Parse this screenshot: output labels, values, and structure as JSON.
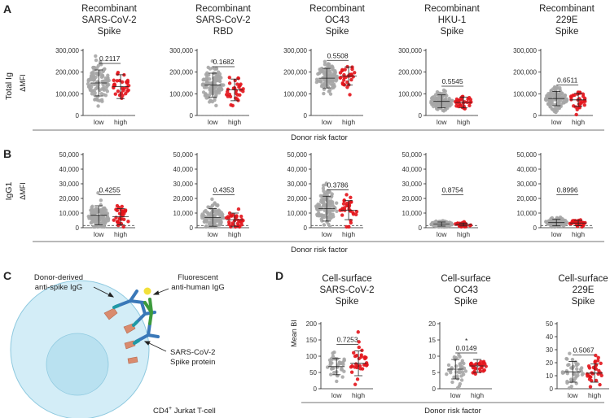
{
  "panel_labels": {
    "A": "A",
    "B": "B",
    "C": "C",
    "D": "D"
  },
  "row_labels": {
    "total_ig": "Total Ig",
    "igg1": "IgG1",
    "dmfi": "ΔMFI",
    "mean_bi": "Mean BI"
  },
  "footer_labels": {
    "row_a": "Donor risk factor",
    "row_b": "Donor risk factor",
    "row_d": "Donor risk factor"
  },
  "colors": {
    "low": "#a6a6a6",
    "high": "#e3141b"
  },
  "diagram": {
    "donor_label_1": "Donor-derived",
    "donor_label_2": "anti-spike IgG",
    "fluor_label_1": "Fluorescent",
    "fluor_label_2": "anti-human IgG",
    "spike_label_1": "SARS-CoV-2",
    "spike_label_2": "Spike protein",
    "cell_label_main": "CD4",
    "cell_label_sup": "+",
    "cell_label_rest": " Jurkat T-cell"
  },
  "chart_data": [
    {
      "id": "A1",
      "type": "scatter",
      "title": [
        "Recombinant",
        "SARS-CoV-2",
        "Spike"
      ],
      "ylabel": "ΔMFI",
      "ylim": [
        0,
        300000
      ],
      "yticks": [
        0,
        100000,
        200000,
        300000
      ],
      "ytick_labels": [
        "0",
        "100,000",
        "200,000",
        "300,000"
      ],
      "categories": [
        "low",
        "high"
      ],
      "p_value": "0.2117",
      "star": "",
      "baseline": 0,
      "series": [
        {
          "name": "low",
          "mean": 150000,
          "sd": 60000,
          "n": 110,
          "spread": 80000
        },
        {
          "name": "high",
          "mean": 133000,
          "sd": 55000,
          "n": 30,
          "spread": 70000
        }
      ]
    },
    {
      "id": "A2",
      "type": "scatter",
      "title": [
        "Recombinant",
        "SARS-CoV-2",
        "RBD"
      ],
      "ylabel": "ΔMFI",
      "ylim": [
        0,
        300000
      ],
      "yticks": [
        0,
        100000,
        200000,
        300000
      ],
      "ytick_labels": [
        "0",
        "100,000",
        "200,000",
        "300,000"
      ],
      "categories": [
        "low",
        "high"
      ],
      "p_value": "0.1682",
      "star": "",
      "baseline": 0,
      "series": [
        {
          "name": "low",
          "mean": 140000,
          "sd": 55000,
          "n": 110,
          "spread": 75000
        },
        {
          "name": "high",
          "mean": 118000,
          "sd": 50000,
          "n": 30,
          "spread": 70000
        }
      ]
    },
    {
      "id": "A3",
      "type": "scatter",
      "title": [
        "Recombinant",
        "OC43",
        "Spike"
      ],
      "ylabel": "ΔMFI",
      "ylim": [
        0,
        300000
      ],
      "yticks": [
        0,
        100000,
        200000,
        300000
      ],
      "ytick_labels": [
        "0",
        "100,000",
        "200,000",
        "300,000"
      ],
      "categories": [
        "low",
        "high"
      ],
      "p_value": "0.5508",
      "star": "",
      "baseline": 0,
      "series": [
        {
          "name": "low",
          "mean": 172000,
          "sd": 45000,
          "n": 110,
          "spread": 60000
        },
        {
          "name": "high",
          "mean": 182000,
          "sd": 42000,
          "n": 30,
          "spread": 55000
        }
      ]
    },
    {
      "id": "A4",
      "type": "scatter",
      "title": [
        "Recombinant",
        "HKU-1",
        "Spike"
      ],
      "ylabel": "ΔMFI",
      "ylim": [
        0,
        300000
      ],
      "yticks": [
        0,
        100000,
        200000,
        300000
      ],
      "ytick_labels": [
        "0",
        "100,000",
        "200,000",
        "300,000"
      ],
      "categories": [
        "low",
        "high"
      ],
      "p_value": "0.5545",
      "star": "",
      "baseline": 0,
      "series": [
        {
          "name": "low",
          "mean": 65000,
          "sd": 30000,
          "n": 110,
          "spread": 40000
        },
        {
          "name": "high",
          "mean": 60000,
          "sd": 25000,
          "n": 30,
          "spread": 35000
        }
      ]
    },
    {
      "id": "A5",
      "type": "scatter",
      "title": [
        "Recombinant",
        "229E",
        "Spike"
      ],
      "ylabel": "ΔMFI",
      "ylim": [
        0,
        300000
      ],
      "yticks": [
        0,
        100000,
        200000,
        300000
      ],
      "ytick_labels": [
        "0",
        "100,000",
        "200,000",
        "300,000"
      ],
      "categories": [
        "low",
        "high"
      ],
      "p_value": "0.6511",
      "star": "",
      "baseline": 0,
      "series": [
        {
          "name": "low",
          "mean": 78000,
          "sd": 33000,
          "n": 110,
          "spread": 45000
        },
        {
          "name": "high",
          "mean": 72000,
          "sd": 30000,
          "n": 30,
          "spread": 40000
        }
      ]
    },
    {
      "id": "B1",
      "type": "scatter",
      "title": [],
      "ylabel": "ΔMFI",
      "ylim": [
        0,
        50000
      ],
      "yticks": [
        0,
        10000,
        20000,
        30000,
        40000,
        50000
      ],
      "ytick_labels": [
        "0",
        "10,000",
        "20,000",
        "30,000",
        "40,000",
        "50,000"
      ],
      "categories": [
        "low",
        "high"
      ],
      "p_value": "0.4255",
      "star": "",
      "baseline": 1500,
      "series": [
        {
          "name": "low",
          "mean": 8500,
          "sd": 6500,
          "n": 110,
          "spread": 9000
        },
        {
          "name": "high",
          "mean": 7500,
          "sd": 5500,
          "n": 30,
          "spread": 8000
        }
      ]
    },
    {
      "id": "B2",
      "type": "scatter",
      "title": [],
      "ylabel": "ΔMFI",
      "ylim": [
        0,
        50000
      ],
      "yticks": [
        0,
        10000,
        20000,
        30000,
        40000,
        50000
      ],
      "ytick_labels": [
        "0",
        "10,000",
        "20,000",
        "30,000",
        "40,000",
        "50,000"
      ],
      "categories": [
        "low",
        "high"
      ],
      "p_value": "0.4353",
      "star": "",
      "baseline": 1500,
      "series": [
        {
          "name": "low",
          "mean": 7000,
          "sd": 6000,
          "n": 110,
          "spread": 8500
        },
        {
          "name": "high",
          "mean": 5500,
          "sd": 4500,
          "n": 30,
          "spread": 7000
        }
      ]
    },
    {
      "id": "B3",
      "type": "scatter",
      "title": [],
      "ylabel": "ΔMFI",
      "ylim": [
        0,
        50000
      ],
      "yticks": [
        0,
        10000,
        20000,
        30000,
        40000,
        50000
      ],
      "ytick_labels": [
        "0",
        "10,000",
        "20,000",
        "30,000",
        "40,000",
        "50,000"
      ],
      "categories": [
        "low",
        "high"
      ],
      "p_value": "0.3786",
      "star": "",
      "baseline": 1500,
      "series": [
        {
          "name": "low",
          "mean": 13000,
          "sd": 8500,
          "n": 110,
          "spread": 11000
        },
        {
          "name": "high",
          "mean": 12000,
          "sd": 6500,
          "n": 30,
          "spread": 9000
        }
      ]
    },
    {
      "id": "B4",
      "type": "scatter",
      "title": [],
      "ylabel": "ΔMFI",
      "ylim": [
        0,
        50000
      ],
      "yticks": [
        0,
        10000,
        20000,
        30000,
        40000,
        50000
      ],
      "ytick_labels": [
        "0",
        "10,000",
        "20,000",
        "30,000",
        "40,000",
        "50,000"
      ],
      "categories": [
        "low",
        "high"
      ],
      "p_value": "0.8754",
      "star": "",
      "baseline": 1500,
      "series": [
        {
          "name": "low",
          "mean": 2500,
          "sd": 1400,
          "n": 110,
          "spread": 2000
        },
        {
          "name": "high",
          "mean": 2200,
          "sd": 1000,
          "n": 30,
          "spread": 1600
        }
      ]
    },
    {
      "id": "B5",
      "type": "scatter",
      "title": [],
      "ylabel": "ΔMFI",
      "ylim": [
        0,
        50000
      ],
      "yticks": [
        0,
        10000,
        20000,
        30000,
        40000,
        50000
      ],
      "ytick_labels": [
        "0",
        "10,000",
        "20,000",
        "30,000",
        "40,000",
        "50,000"
      ],
      "categories": [
        "low",
        "high"
      ],
      "p_value": "0.8996",
      "star": "",
      "baseline": 1500,
      "series": [
        {
          "name": "low",
          "mean": 3500,
          "sd": 2200,
          "n": 110,
          "spread": 3000
        },
        {
          "name": "high",
          "mean": 3200,
          "sd": 1800,
          "n": 30,
          "spread": 2500
        }
      ]
    },
    {
      "id": "D1",
      "type": "scatter",
      "title": [
        "Cell-surface",
        "SARS-CoV-2",
        "Spike"
      ],
      "ylabel": "Mean BI",
      "ylim": [
        0,
        200
      ],
      "yticks": [
        0,
        50,
        100,
        150,
        200
      ],
      "ytick_labels": [
        "0",
        "50",
        "100",
        "150",
        "200"
      ],
      "categories": [
        "low",
        "high"
      ],
      "p_value": "0.7253",
      "star": "",
      "baseline": null,
      "series": [
        {
          "name": "low",
          "mean": 68,
          "sd": 25,
          "n": 40,
          "spread": 40
        },
        {
          "name": "high",
          "mean": 78,
          "sd": 38,
          "n": 30,
          "spread": 55
        }
      ]
    },
    {
      "id": "D2",
      "type": "scatter",
      "title": [
        "Cell-surface",
        "OC43",
        "Spike"
      ],
      "ylabel": "Mean BI",
      "ylim": [
        0,
        20
      ],
      "yticks": [
        0,
        5,
        10,
        15,
        20
      ],
      "ytick_labels": [
        "0",
        "5",
        "10",
        "15",
        "20"
      ],
      "categories": [
        "low",
        "high"
      ],
      "p_value": "0.0149",
      "star": "*",
      "baseline": null,
      "series": [
        {
          "name": "low",
          "mean": 6,
          "sd": 3,
          "n": 40,
          "spread": 4.5
        },
        {
          "name": "high",
          "mean": 7,
          "sd": 2,
          "n": 30,
          "spread": 3
        }
      ]
    },
    {
      "id": "D3",
      "type": "scatter",
      "title": [
        "Cell-surface",
        "229E",
        "Spike"
      ],
      "ylabel": "Mean BI",
      "ylim": [
        0,
        50
      ],
      "yticks": [
        0,
        10,
        20,
        30,
        40,
        50
      ],
      "ytick_labels": [
        "0",
        "10",
        "20",
        "30",
        "40",
        "50"
      ],
      "categories": [
        "low",
        "high"
      ],
      "p_value": "0.5067",
      "star": "",
      "baseline": null,
      "series": [
        {
          "name": "low",
          "mean": 13,
          "sd": 8,
          "n": 40,
          "spread": 12
        },
        {
          "name": "high",
          "mean": 12,
          "sd": 7,
          "n": 30,
          "spread": 12
        }
      ]
    }
  ]
}
